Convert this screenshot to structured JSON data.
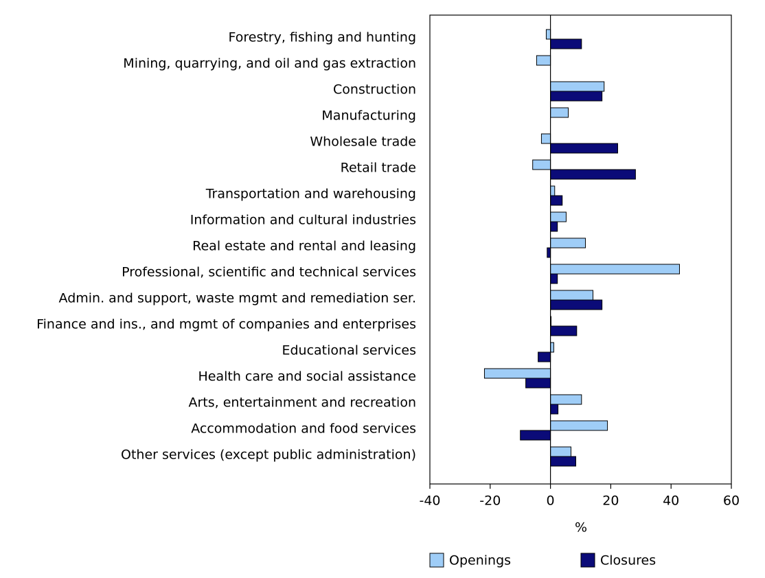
{
  "chart_data": {
    "type": "hbar",
    "x_label": "%",
    "categories": [
      "Forestry, fishing and hunting",
      "Mining, quarrying, and oil and gas extraction",
      "Construction",
      "Manufacturing",
      "Wholesale trade",
      "Retail trade",
      "Transportation and warehousing",
      "Information and cultural industries",
      "Real estate and rental and leasing",
      "Professional, scientific and technical services",
      "Admin. and support, waste mgmt and remediation ser.",
      "Finance and ins., and mgmt of companies and enterprises",
      "Educational services",
      "Health care and social assistance",
      "Arts, entertainment and recreation",
      "Accommodation and food services",
      "Other services (except public administration)"
    ],
    "series": [
      {
        "name": "Openings",
        "color": "#9fcdf7",
        "values": [
          -1.4,
          -4.6,
          17.8,
          5.9,
          -3.0,
          -5.9,
          1.4,
          5.2,
          11.6,
          42.8,
          14.1,
          0.2,
          1.1,
          -21.9,
          10.3,
          18.9,
          6.8
        ]
      },
      {
        "name": "Closures",
        "color": "#0b0b78",
        "values": [
          10.3,
          0,
          17.1,
          0,
          22.3,
          28.2,
          3.9,
          2.3,
          -1.1,
          2.3,
          17.1,
          8.7,
          -4.1,
          -8.2,
          2.5,
          -10.0,
          8.4
        ]
      }
    ],
    "xlim": [
      -40,
      60
    ],
    "xticks": [
      -40,
      -20,
      0,
      20,
      40,
      60
    ]
  }
}
